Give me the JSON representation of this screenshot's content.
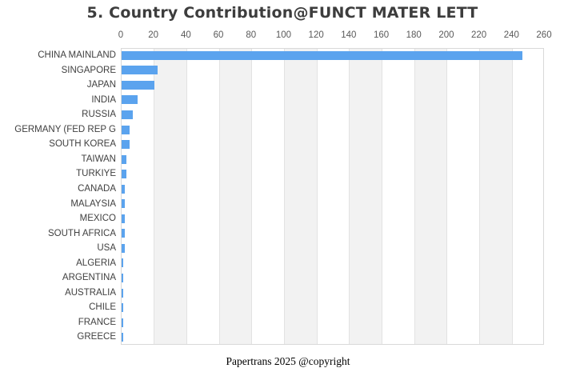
{
  "page": {
    "title": "5. Country Contribution@FUNCT MATER LETT",
    "footer": "Papertrans 2025 @copyright"
  },
  "chart_data": {
    "type": "bar",
    "orientation": "horizontal",
    "title": "5. Country Contribution@FUNCT MATER LETT",
    "xlabel": "",
    "ylabel": "",
    "x_axis_position": "top",
    "xlim": [
      0,
      260
    ],
    "x_ticks": [
      0,
      20,
      40,
      60,
      80,
      100,
      120,
      140,
      160,
      180,
      200,
      220,
      240,
      260
    ],
    "categories": [
      "CHINA MAINLAND",
      "SINGAPORE",
      "JAPAN",
      "INDIA",
      "RUSSIA",
      "GERMANY (FED REP G",
      "SOUTH KOREA",
      "TAIWAN",
      "TURKIYE",
      "CANADA",
      "MALAYSIA",
      "MEXICO",
      "SOUTH AFRICA",
      "USA",
      "ALGERIA",
      "ARGENTINA",
      "AUSTRALIA",
      "CHILE",
      "FRANCE",
      "GREECE"
    ],
    "values": [
      246,
      22,
      20,
      10,
      7,
      5,
      5,
      3,
      3,
      2,
      2,
      2,
      2,
      2,
      1,
      1,
      1,
      1,
      1,
      1
    ],
    "grid": true,
    "legend": "none",
    "alternating_bands": true,
    "colors": {
      "bar": "#5ba3ee",
      "band": "#f2f2f2",
      "gridline": "#e2e2e2",
      "plot_border": "#d9d9d9",
      "title_text": "#3d3d3d",
      "tick_text": "#595959",
      "category_text": "#404040",
      "footer_text": "#000000"
    }
  }
}
